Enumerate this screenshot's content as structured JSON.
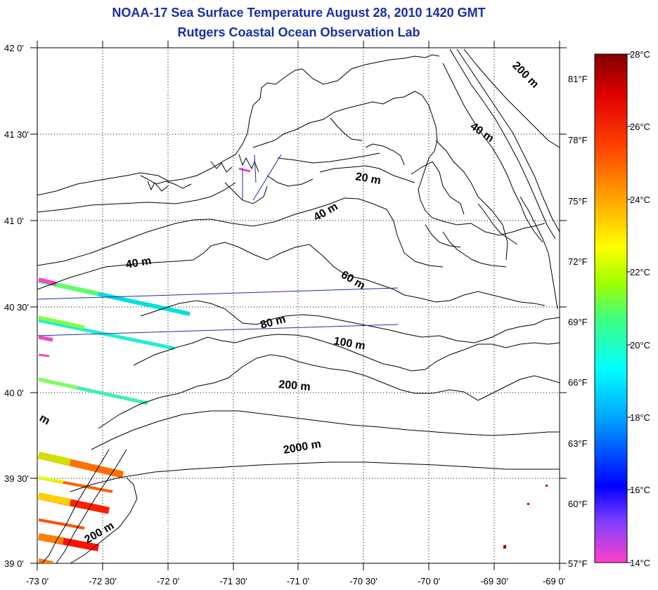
{
  "title": {
    "line1": "NOAA-17 Sea Surface Temperature August 28, 2010 1420 GMT",
    "line2": "Rutgers Coastal Ocean Observation Lab"
  },
  "map": {
    "lat_range": [
      39.0,
      42.0
    ],
    "lon_range": [
      -73.0,
      -69.0
    ],
    "grid": "dotted",
    "lat_tick_labels": [
      "42 0'",
      "41 30'",
      "41 0'",
      "40 30'",
      "40 0'",
      "39 30'",
      "39 0'"
    ],
    "lon_tick_labels": [
      "-73 0'",
      "-72 30'",
      "-72 0'",
      "-71 30'",
      "-71 0'",
      "-70 30'",
      "-70 0'",
      "-69 30'",
      "-69 0'"
    ],
    "contour_labels": [
      "200 m",
      "40 m",
      "20 m",
      "40 m",
      "40 m",
      "60 m",
      "80 m",
      "100 m",
      "200 m",
      "2000 m",
      "200 m",
      "m"
    ]
  },
  "colorbar": {
    "celsius_labels": [
      "28°C",
      "26°C",
      "24°C",
      "22°C",
      "20°C",
      "18°C",
      "16°C",
      "14°C"
    ],
    "fahrenheit_labels": [
      "81°F",
      "78°F",
      "75°F",
      "72°F",
      "69°F",
      "66°F",
      "63°F",
      "60°F",
      "57°F"
    ],
    "range_c": [
      14,
      28
    ],
    "gradient_colors": [
      "#ff40c8",
      "#8040ff",
      "#0000ff",
      "#00a0ff",
      "#00ffff",
      "#40ff80",
      "#a0ff00",
      "#ffff00",
      "#ffa000",
      "#ff4000",
      "#e00000",
      "#800000"
    ]
  }
}
